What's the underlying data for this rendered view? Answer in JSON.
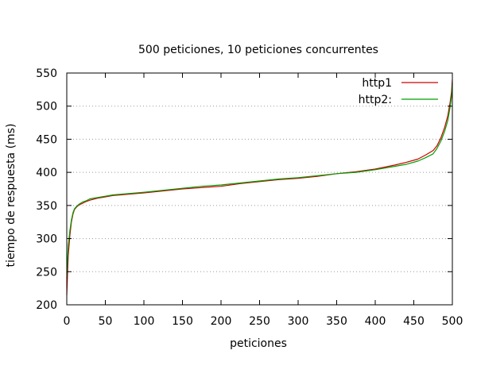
{
  "chart_data": {
    "type": "line",
    "title": "500 peticiones, 10 peticiones concurrentes",
    "xlabel": "peticiones",
    "ylabel": "tiempo de respuesta (ms)",
    "xlim": [
      0,
      500
    ],
    "ylim": [
      200,
      550
    ],
    "xticks": [
      0,
      50,
      100,
      150,
      200,
      250,
      300,
      350,
      400,
      450,
      500
    ],
    "yticks": [
      200,
      250,
      300,
      350,
      400,
      450,
      500,
      550
    ],
    "grid": "horizontal-dotted",
    "legend_position": "top-right",
    "series": [
      {
        "name": "http1",
        "color": "#cc0000",
        "x": [
          0,
          1,
          2,
          4,
          6,
          8,
          10,
          13,
          16,
          20,
          25,
          30,
          40,
          50,
          60,
          70,
          80,
          100,
          125,
          150,
          175,
          200,
          225,
          250,
          275,
          300,
          325,
          350,
          375,
          400,
          425,
          440,
          455,
          465,
          475,
          480,
          485,
          490,
          494,
          497,
          499,
          500
        ],
        "y": [
          215,
          248,
          275,
          305,
          325,
          337,
          344,
          348,
          351,
          353,
          356,
          358,
          361,
          363,
          365,
          366,
          367,
          369,
          372,
          375,
          377,
          379,
          383,
          386,
          389,
          391,
          394,
          398,
          401,
          405,
          411,
          415,
          420,
          426,
          433,
          440,
          452,
          468,
          485,
          505,
          522,
          540
        ]
      },
      {
        "name": "http2:",
        "color": "#00a000",
        "x": [
          0,
          1,
          2,
          4,
          6,
          8,
          10,
          13,
          16,
          20,
          25,
          30,
          40,
          50,
          60,
          70,
          80,
          100,
          125,
          150,
          175,
          200,
          225,
          250,
          275,
          300,
          325,
          350,
          375,
          400,
          425,
          440,
          455,
          465,
          475,
          480,
          485,
          490,
          494,
          497,
          499,
          500
        ],
        "y": [
          240,
          268,
          290,
          312,
          328,
          339,
          345,
          349,
          352,
          355,
          357,
          360,
          362,
          364,
          366,
          367,
          368,
          370,
          373,
          376,
          379,
          381,
          384,
          387,
          390,
          392,
          395,
          398,
          400,
          404,
          409,
          412,
          417,
          422,
          428,
          436,
          447,
          462,
          478,
          498,
          515,
          535
        ]
      }
    ]
  }
}
